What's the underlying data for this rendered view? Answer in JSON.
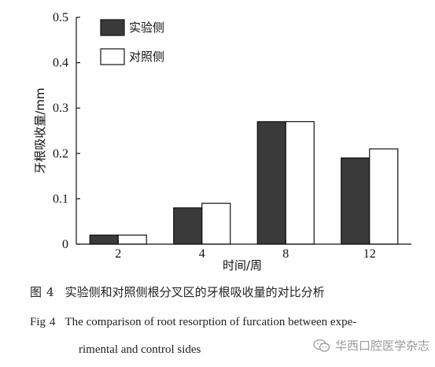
{
  "chart_data": {
    "type": "bar",
    "categories": [
      "2",
      "4",
      "8",
      "12"
    ],
    "series": [
      {
        "name": "实验侧",
        "values": [
          0.02,
          0.08,
          0.27,
          0.19
        ],
        "color": "#3a3a3a"
      },
      {
        "name": "对照侧",
        "values": [
          0.02,
          0.09,
          0.27,
          0.21
        ],
        "color": "#ffffff"
      }
    ],
    "xlabel": "时间/周",
    "ylabel": "牙根吸收量/mm",
    "ylim": [
      0,
      0.5
    ],
    "yticks": [
      "0",
      "0.1",
      "0.2",
      "0.3",
      "0.4",
      "0.5"
    ],
    "grid": false,
    "legend_position": "top-left"
  },
  "caption": {
    "cn_prefix": "图",
    "cn_number": "4",
    "cn_text": "实验侧和对照侧根分叉区的牙根吸收量的对比分析",
    "en_prefix": "Fig",
    "en_number": "4",
    "en_line1": "The comparison of root resorption of furcation between expe-",
    "en_line2": "rimental and control sides"
  },
  "watermark": {
    "text": "华西口腔医学杂志",
    "icon": "wechat-logo-icon"
  }
}
